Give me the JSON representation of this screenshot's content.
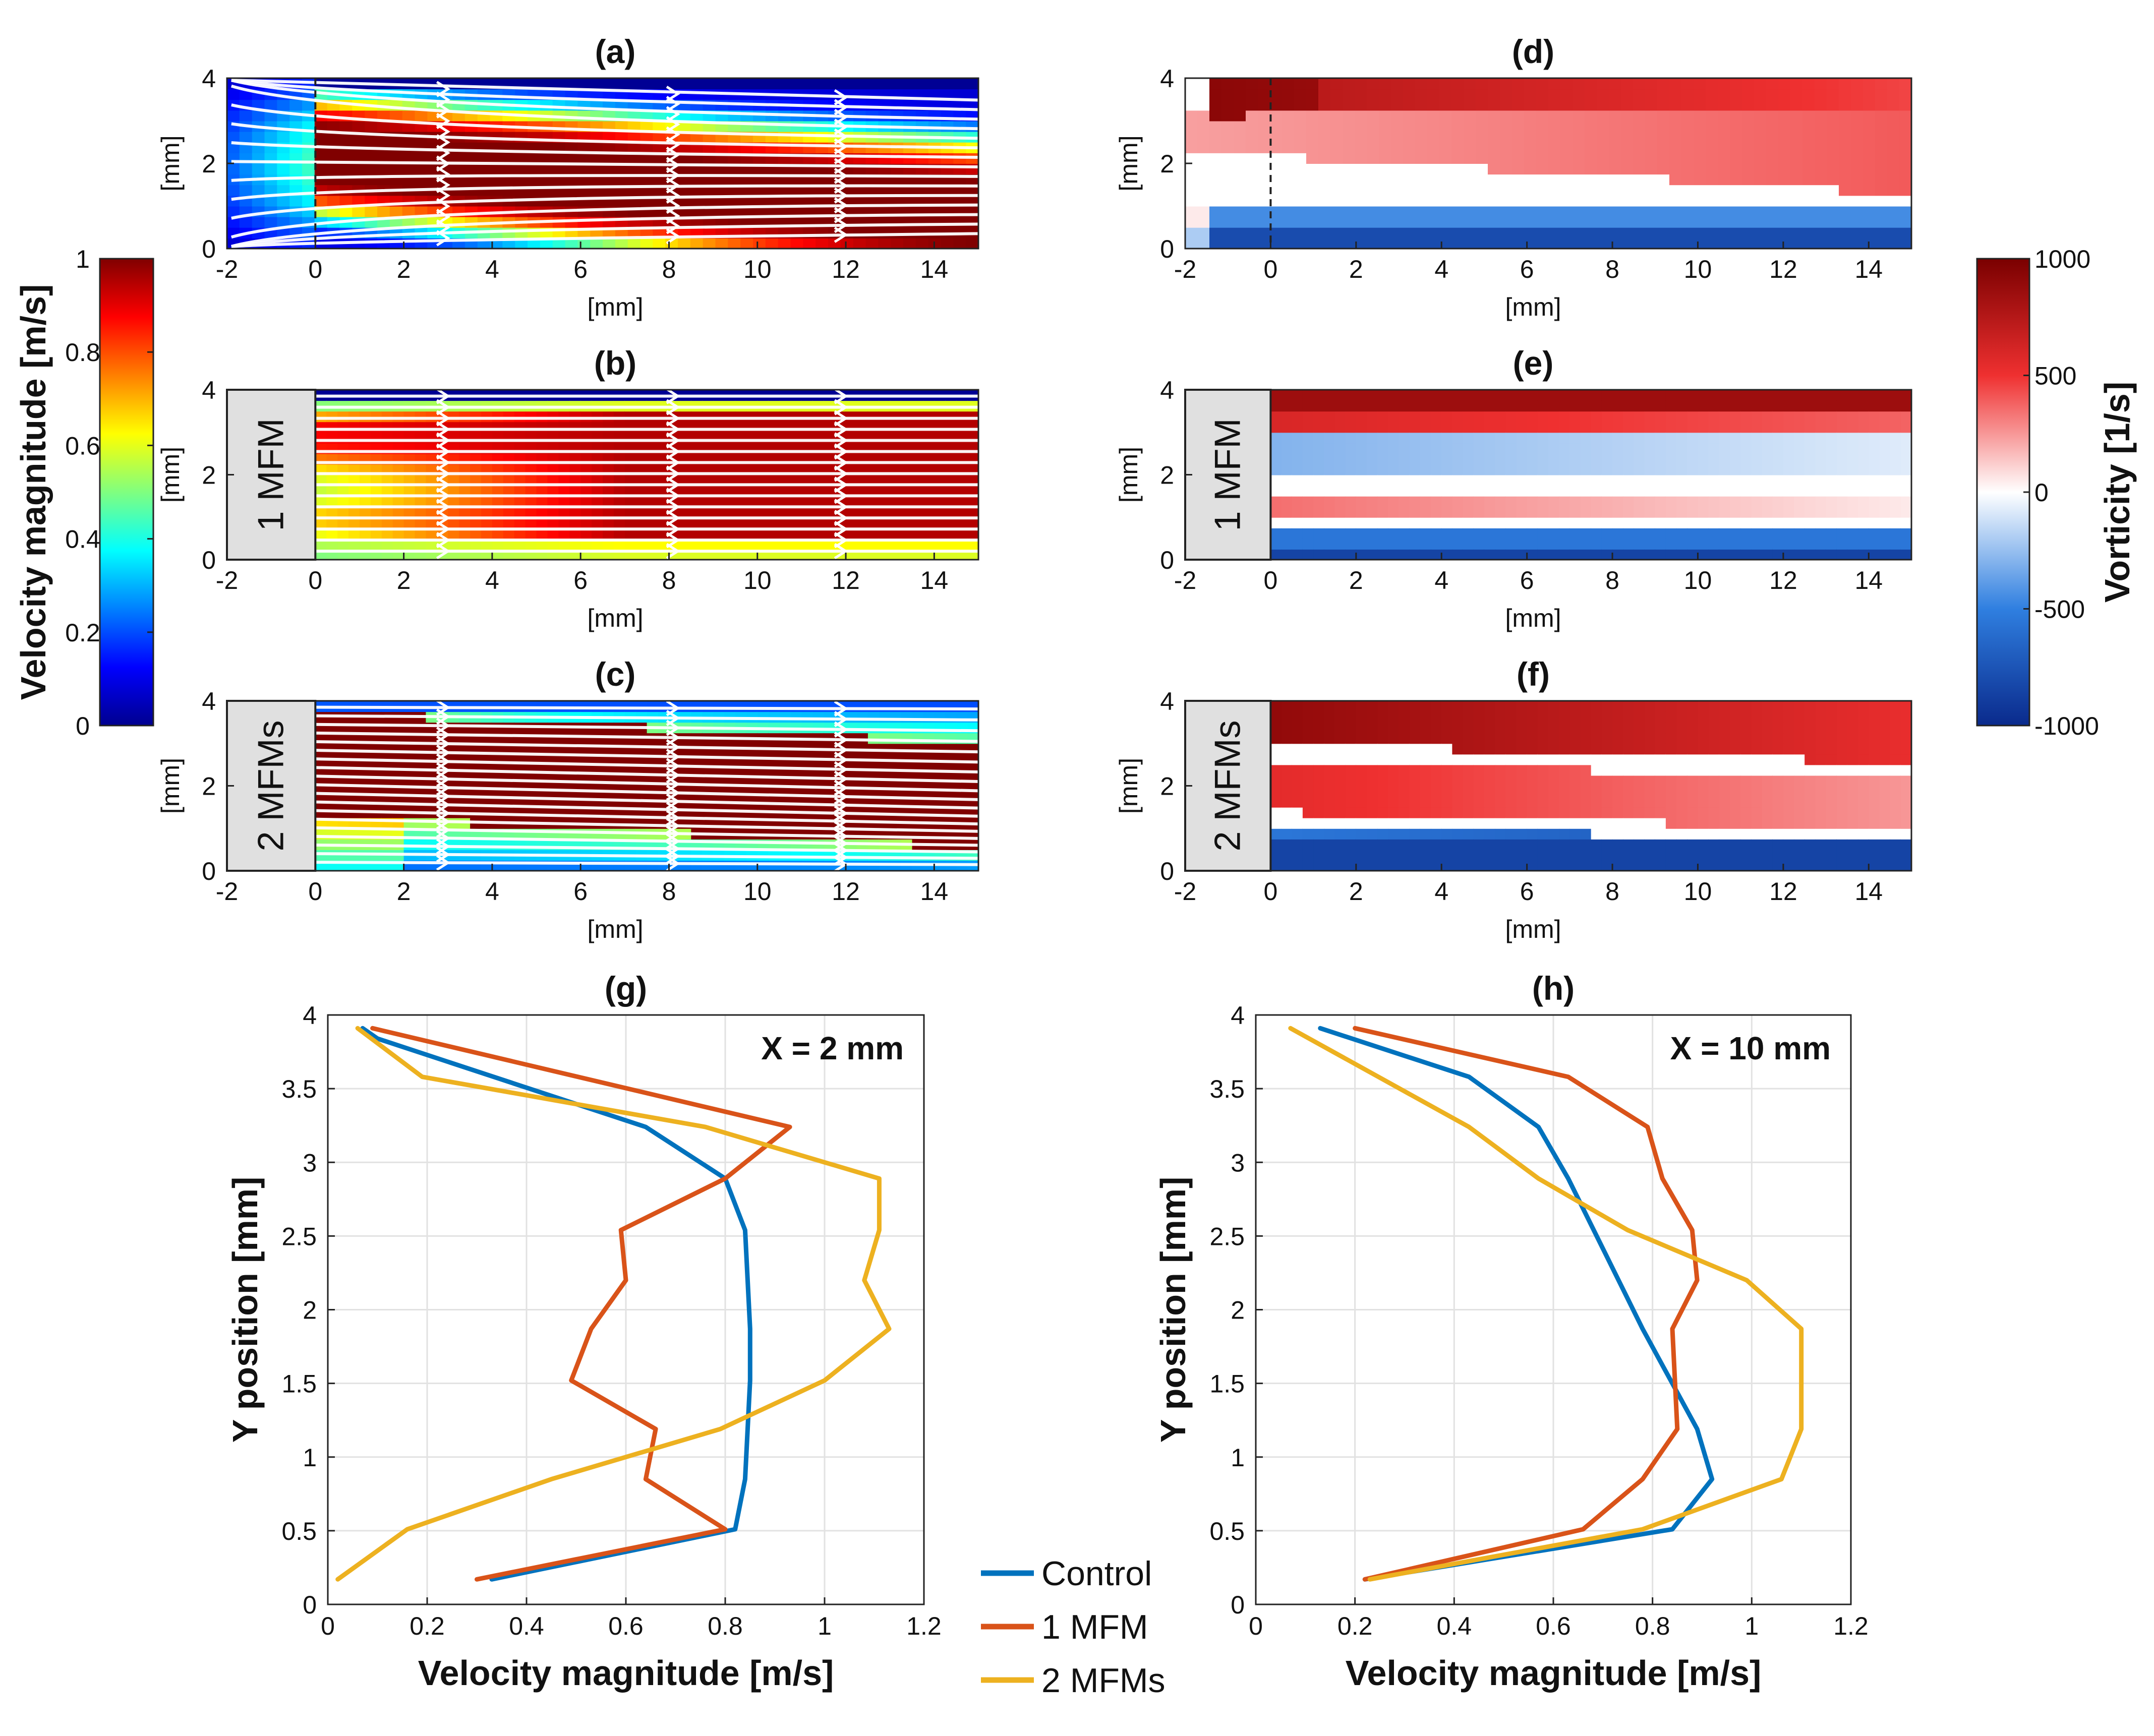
{
  "colors": {
    "control": "#0072BD",
    "mfm1": "#D95319",
    "mfm2": "#EDB120",
    "grid": "#e2e2e2",
    "device_box": "#e0e0e0"
  },
  "chart_data": [
    {
      "id": "a",
      "type": "heatmap",
      "title": "(a)",
      "field": "velocity magnitude",
      "streamlines": true,
      "x_range": [
        -2,
        15
      ],
      "y_range": [
        0,
        4
      ],
      "xticks": [
        "-2",
        "0",
        "2",
        "4",
        "6",
        "8",
        "10",
        "12",
        "14"
      ],
      "yticks": [
        "0",
        "2",
        "4"
      ],
      "xlabel": "[mm]",
      "ylabel": "[mm]",
      "side_label": ""
    },
    {
      "id": "b",
      "type": "heatmap",
      "title": "(b)",
      "field": "velocity magnitude",
      "streamlines": true,
      "x_range": [
        -2,
        15
      ],
      "y_range": [
        0,
        4
      ],
      "xticks": [
        "-2",
        "0",
        "2",
        "4",
        "6",
        "8",
        "10",
        "12",
        "14"
      ],
      "yticks": [
        "0",
        "2",
        "4"
      ],
      "xlabel": "[mm]",
      "ylabel": "[mm]",
      "side_label": "1 MFM"
    },
    {
      "id": "c",
      "type": "heatmap",
      "title": "(c)",
      "field": "velocity magnitude",
      "streamlines": true,
      "x_range": [
        -2,
        15
      ],
      "y_range": [
        0,
        4
      ],
      "xticks": [
        "-2",
        "0",
        "2",
        "4",
        "6",
        "8",
        "10",
        "12",
        "14"
      ],
      "yticks": [
        "0",
        "2",
        "4"
      ],
      "xlabel": "[mm]",
      "ylabel": "[mm]",
      "side_label": "2 MFMs"
    },
    {
      "id": "d",
      "type": "heatmap",
      "title": "(d)",
      "field": "vorticity",
      "streamlines": false,
      "x_range": [
        -2,
        15
      ],
      "y_range": [
        0,
        4
      ],
      "xticks": [
        "-2",
        "0",
        "2",
        "4",
        "6",
        "8",
        "10",
        "12",
        "14"
      ],
      "yticks": [
        "0",
        "2",
        "4"
      ],
      "xlabel": "[mm]",
      "ylabel": "[mm]",
      "side_label": ""
    },
    {
      "id": "e",
      "type": "heatmap",
      "title": "(e)",
      "field": "vorticity",
      "streamlines": false,
      "x_range": [
        -2,
        15
      ],
      "y_range": [
        0,
        4
      ],
      "xticks": [
        "-2",
        "0",
        "2",
        "4",
        "6",
        "8",
        "10",
        "12",
        "14"
      ],
      "yticks": [
        "0",
        "2",
        "4"
      ],
      "xlabel": "[mm]",
      "ylabel": "[mm]",
      "side_label": "1 MFM"
    },
    {
      "id": "f",
      "type": "heatmap",
      "title": "(f)",
      "field": "vorticity",
      "streamlines": false,
      "x_range": [
        -2,
        15
      ],
      "y_range": [
        0,
        4
      ],
      "xticks": [
        "-2",
        "0",
        "2",
        "4",
        "6",
        "8",
        "10",
        "12",
        "14"
      ],
      "yticks": [
        "0",
        "2",
        "4"
      ],
      "xlabel": "[mm]",
      "ylabel": "[mm]",
      "side_label": "2 MFMs"
    },
    {
      "id": "g",
      "type": "line",
      "title": "(g)",
      "annotation": "X = 2 mm",
      "xlabel": "Velocity magnitude [m/s]",
      "ylabel": "Y position [mm]",
      "xlim": [
        0,
        1.2
      ],
      "ylim": [
        0,
        4
      ],
      "xticks": [
        "0",
        "0.2",
        "0.4",
        "0.6",
        "0.8",
        "1",
        "1.2"
      ],
      "yticks": [
        "0",
        "0.5",
        "1",
        "1.5",
        "2",
        "2.5",
        "3",
        "3.5",
        "4"
      ],
      "grid": true,
      "series": [
        {
          "name": "Control",
          "color": "#0072BD",
          "x": [
            0.33,
            0.82,
            0.84,
            0.85,
            0.85,
            0.84,
            0.8,
            0.64,
            0.1,
            0.07
          ],
          "y": [
            0.17,
            0.51,
            0.85,
            1.52,
            1.87,
            2.54,
            2.89,
            3.24,
            3.84,
            3.91
          ]
        },
        {
          "name": "1 MFM",
          "color": "#D95319",
          "x": [
            0.3,
            0.8,
            0.64,
            0.66,
            0.49,
            0.53,
            0.6,
            0.59,
            0.8,
            0.93,
            0.09
          ],
          "y": [
            0.17,
            0.51,
            0.85,
            1.19,
            1.52,
            1.87,
            2.2,
            2.54,
            2.89,
            3.24,
            3.91
          ]
        },
        {
          "name": "2 MFMs",
          "color": "#EDB120",
          "x": [
            0.02,
            0.16,
            0.45,
            0.79,
            1.0,
            1.13,
            1.08,
            1.11,
            1.11,
            0.76,
            0.19,
            0.06
          ],
          "y": [
            0.17,
            0.51,
            0.85,
            1.19,
            1.52,
            1.87,
            2.2,
            2.54,
            2.89,
            3.24,
            3.58,
            3.91
          ]
        }
      ]
    },
    {
      "id": "h",
      "type": "line",
      "title": "(h)",
      "annotation": "X = 10 mm",
      "xlabel": "Velocity magnitude [m/s]",
      "ylabel": "Y position [mm]",
      "xlim": [
        0,
        1.2
      ],
      "ylim": [
        0,
        4
      ],
      "xticks": [
        "0",
        "0.2",
        "0.4",
        "0.6",
        "0.8",
        "1",
        "1.2"
      ],
      "yticks": [
        "0",
        "0.5",
        "1",
        "1.5",
        "2",
        "2.5",
        "3",
        "3.5",
        "4"
      ],
      "grid": true,
      "series": [
        {
          "name": "Control",
          "color": "#0072BD",
          "x": [
            0.22,
            0.84,
            0.92,
            0.89,
            0.78,
            0.63,
            0.57,
            0.43,
            0.13
          ],
          "y": [
            0.17,
            0.51,
            0.85,
            1.19,
            1.87,
            2.89,
            3.24,
            3.58,
            3.91
          ]
        },
        {
          "name": "1 MFM",
          "color": "#D95319",
          "x": [
            0.22,
            0.66,
            0.78,
            0.85,
            0.84,
            0.89,
            0.88,
            0.82,
            0.79,
            0.63,
            0.2
          ],
          "y": [
            0.17,
            0.51,
            0.85,
            1.19,
            1.87,
            2.2,
            2.54,
            2.89,
            3.24,
            3.58,
            3.91
          ]
        },
        {
          "name": "2 MFMs",
          "color": "#EDB120",
          "x": [
            0.23,
            0.78,
            1.06,
            1.1,
            1.1,
            1.1,
            0.99,
            0.75,
            0.57,
            0.43,
            0.07
          ],
          "y": [
            0.17,
            0.51,
            0.85,
            1.19,
            1.52,
            1.87,
            2.2,
            2.54,
            2.89,
            3.24,
            3.91
          ]
        }
      ]
    }
  ],
  "colorbars": {
    "velocity": {
      "label": "Velocity magnitude [m/s]",
      "ticks": [
        "0",
        "0.2",
        "0.4",
        "0.6",
        "0.8",
        "1"
      ]
    },
    "vorticity": {
      "label": "Vorticity [1/s]",
      "ticks": [
        "-1000",
        "-500",
        "0",
        "500",
        "1000"
      ]
    }
  },
  "legend": [
    "Control",
    "1 MFM",
    "2 MFMs"
  ]
}
